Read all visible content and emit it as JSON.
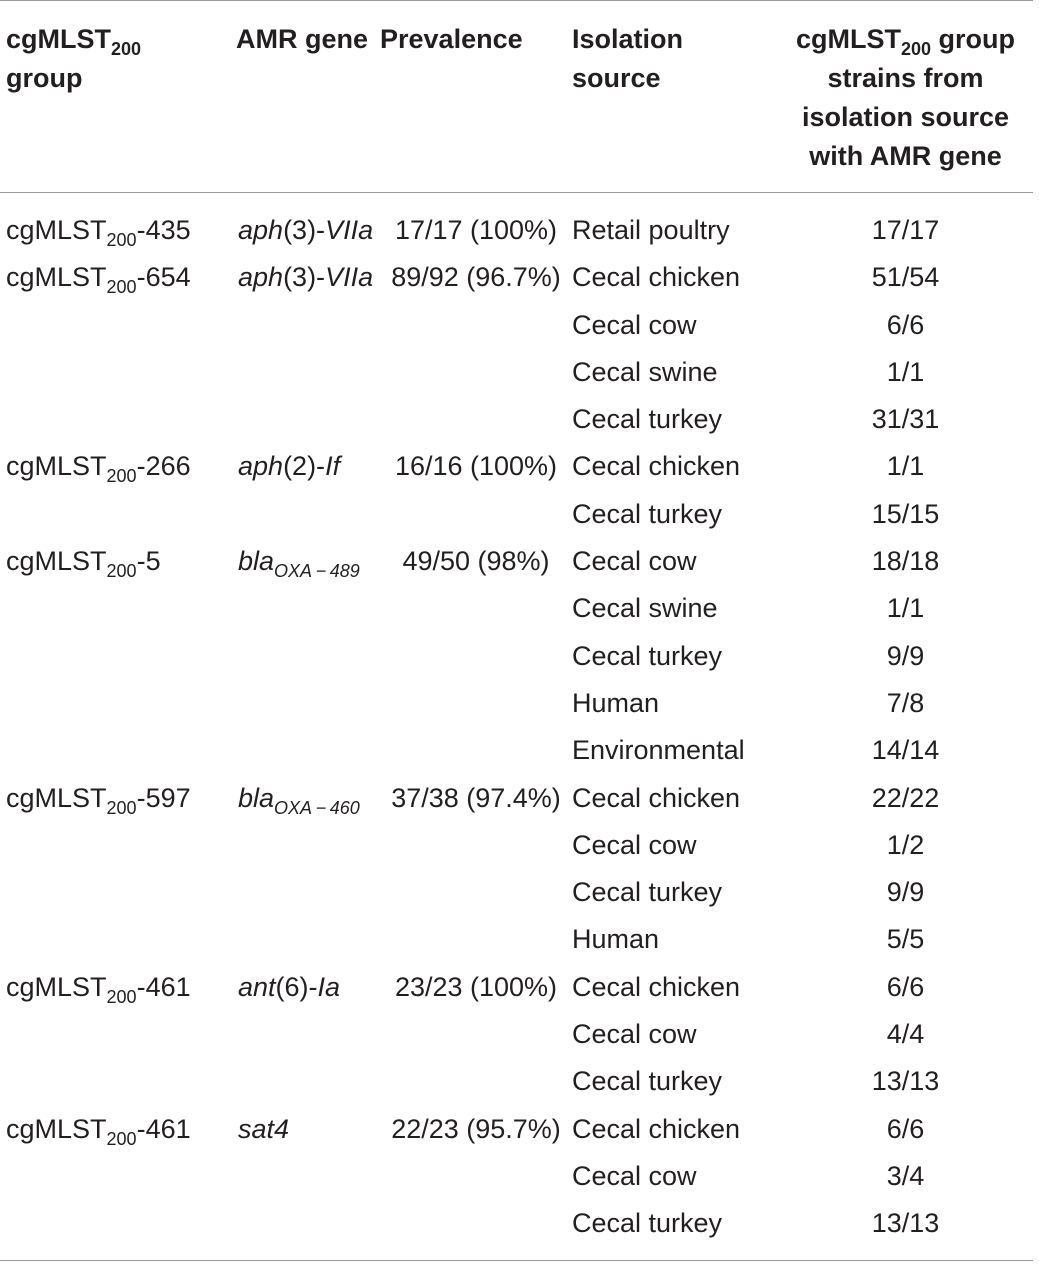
{
  "header": {
    "group_base": "cgMLST",
    "group_sub": "200",
    "group_suffix": "group",
    "amr_gene": "AMR gene",
    "prevalence": "Prevalence",
    "isolation_line1": "Isolation",
    "isolation_line2": "source",
    "strains_base": "cgMLST",
    "strains_sub": "200",
    "strains_suffix": " group",
    "strains_line2": "strains from",
    "strains_line3": "isolation source",
    "strains_line4": "with AMR gene"
  },
  "rows": [
    {
      "group_base": "cgMLST",
      "group_sub": "200",
      "group_id": "-435",
      "gene_a": "aph",
      "gene_b": "(3)-",
      "gene_c": "VIIa",
      "gene_sub": "",
      "prevalence": "17/17 (100%)",
      "source": "Retail poultry",
      "count": "17/17"
    },
    {
      "group_base": "cgMLST",
      "group_sub": "200",
      "group_id": "-654",
      "gene_a": "aph",
      "gene_b": "(3)-",
      "gene_c": "VIIa",
      "gene_sub": "",
      "prevalence": "89/92 (96.7%)",
      "source": "Cecal chicken",
      "count": "51/54"
    },
    {
      "source": "Cecal cow",
      "count": "6/6"
    },
    {
      "source": "Cecal swine",
      "count": "1/1"
    },
    {
      "source": "Cecal turkey",
      "count": "31/31"
    },
    {
      "group_base": "cgMLST",
      "group_sub": "200",
      "group_id": "-266",
      "gene_a": "aph",
      "gene_b": "(2)-",
      "gene_c": "If",
      "gene_sub": "",
      "prevalence": "16/16 (100%)",
      "source": "Cecal chicken",
      "count": "1/1"
    },
    {
      "source": "Cecal turkey",
      "count": "15/15"
    },
    {
      "group_base": "cgMLST",
      "group_sub": "200",
      "group_id": "-5",
      "gene_a": "bla",
      "gene_b": "",
      "gene_c": "",
      "gene_sub": "OXA − 489",
      "prevalence": "49/50 (98%)",
      "source": "Cecal cow",
      "count": "18/18"
    },
    {
      "source": "Cecal swine",
      "count": "1/1"
    },
    {
      "source": "Cecal turkey",
      "count": "9/9"
    },
    {
      "source": "Human",
      "count": "7/8"
    },
    {
      "source": "Environmental",
      "count": "14/14"
    },
    {
      "group_base": "cgMLST",
      "group_sub": "200",
      "group_id": "-597",
      "gene_a": "bla",
      "gene_b": "",
      "gene_c": "",
      "gene_sub": "OXA − 460",
      "prevalence": "37/38 (97.4%)",
      "source": "Cecal chicken",
      "count": "22/22"
    },
    {
      "source": "Cecal cow",
      "count": "1/2"
    },
    {
      "source": "Cecal turkey",
      "count": "9/9"
    },
    {
      "source": "Human",
      "count": "5/5"
    },
    {
      "group_base": "cgMLST",
      "group_sub": "200",
      "group_id": "-461",
      "gene_a": "ant",
      "gene_b": "(6)-",
      "gene_c": "Ia",
      "gene_sub": "",
      "prevalence": "23/23 (100%)",
      "source": "Cecal chicken",
      "count": "6/6"
    },
    {
      "source": "Cecal cow",
      "count": "4/4"
    },
    {
      "source": "Cecal turkey",
      "count": "13/13"
    },
    {
      "group_base": "cgMLST",
      "group_sub": "200",
      "group_id": "-461",
      "gene_a": "sat4",
      "gene_b": "",
      "gene_c": "",
      "gene_sub": "",
      "prevalence": "22/23 (95.7%)",
      "source": "Cecal chicken",
      "count": "6/6"
    },
    {
      "source": "Cecal cow",
      "count": "3/4"
    },
    {
      "source": "Cecal turkey",
      "count": "13/13"
    }
  ]
}
